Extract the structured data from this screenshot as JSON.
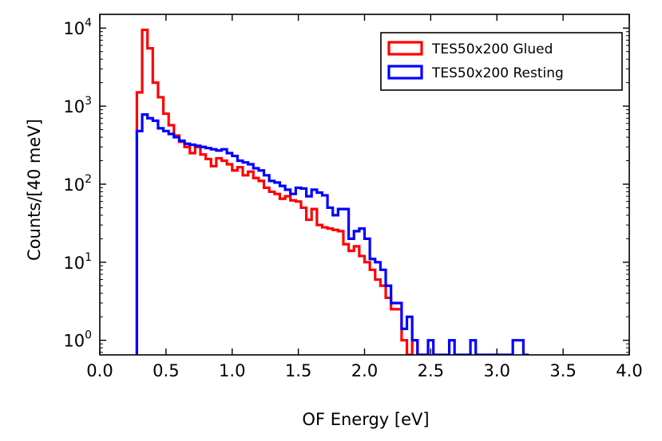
{
  "chart_data": {
    "type": "histogram",
    "xlabel": "OF Energy [eV]",
    "ylabel": "Counts/[40 meV]",
    "xlim": [
      0.0,
      4.0
    ],
    "ylim": [
      0.65,
      15000
    ],
    "yscale": "log",
    "xticks": [
      "0.0",
      "0.5",
      "1.0",
      "1.5",
      "2.0",
      "2.5",
      "3.0",
      "3.5",
      "4.0"
    ],
    "yticks": [
      {
        "base": "10",
        "exp": "0",
        "value": 1
      },
      {
        "base": "10",
        "exp": "1",
        "value": 10
      },
      {
        "base": "10",
        "exp": "2",
        "value": 100
      },
      {
        "base": "10",
        "exp": "3",
        "value": 1000
      },
      {
        "base": "10",
        "exp": "4",
        "value": 10000
      }
    ],
    "grid": false,
    "legend_position": "top-right",
    "bin_width": 0.04,
    "series": [
      {
        "name": "TES50x200 Glued",
        "color": "#ff0000",
        "bins": [
          [
            0.28,
            1500
          ],
          [
            0.32,
            9500
          ],
          [
            0.36,
            5500
          ],
          [
            0.4,
            2000
          ],
          [
            0.44,
            1300
          ],
          [
            0.48,
            800
          ],
          [
            0.52,
            570
          ],
          [
            0.56,
            420
          ],
          [
            0.6,
            350
          ],
          [
            0.64,
            300
          ],
          [
            0.68,
            250
          ],
          [
            0.72,
            300
          ],
          [
            0.76,
            240
          ],
          [
            0.8,
            210
          ],
          [
            0.84,
            170
          ],
          [
            0.88,
            215
          ],
          [
            0.92,
            200
          ],
          [
            0.96,
            180
          ],
          [
            1.0,
            150
          ],
          [
            1.04,
            165
          ],
          [
            1.08,
            130
          ],
          [
            1.12,
            145
          ],
          [
            1.16,
            120
          ],
          [
            1.2,
            110
          ],
          [
            1.24,
            90
          ],
          [
            1.28,
            80
          ],
          [
            1.32,
            75
          ],
          [
            1.36,
            65
          ],
          [
            1.4,
            70
          ],
          [
            1.44,
            62
          ],
          [
            1.48,
            60
          ],
          [
            1.52,
            50
          ],
          [
            1.56,
            35
          ],
          [
            1.6,
            48
          ],
          [
            1.64,
            30
          ],
          [
            1.68,
            28
          ],
          [
            1.72,
            27
          ],
          [
            1.76,
            26
          ],
          [
            1.8,
            25
          ],
          [
            1.84,
            17
          ],
          [
            1.88,
            14
          ],
          [
            1.92,
            16
          ],
          [
            1.96,
            12
          ],
          [
            2.0,
            10
          ],
          [
            2.04,
            8
          ],
          [
            2.08,
            6
          ],
          [
            2.12,
            5
          ],
          [
            2.16,
            3.5
          ],
          [
            2.2,
            2.5
          ],
          [
            2.24,
            2.5
          ],
          [
            2.28,
            1
          ],
          [
            2.32,
            0.5
          ],
          [
            2.36,
            1
          ],
          [
            2.4,
            0.5
          ]
        ]
      },
      {
        "name": "TES50x200 Resting",
        "color": "#0000ff",
        "bins": [
          [
            0.28,
            480
          ],
          [
            0.32,
            780
          ],
          [
            0.36,
            700
          ],
          [
            0.4,
            650
          ],
          [
            0.44,
            520
          ],
          [
            0.48,
            480
          ],
          [
            0.52,
            440
          ],
          [
            0.56,
            400
          ],
          [
            0.6,
            360
          ],
          [
            0.64,
            330
          ],
          [
            0.68,
            320
          ],
          [
            0.72,
            310
          ],
          [
            0.76,
            300
          ],
          [
            0.8,
            290
          ],
          [
            0.84,
            280
          ],
          [
            0.88,
            270
          ],
          [
            0.92,
            280
          ],
          [
            0.96,
            250
          ],
          [
            1.0,
            230
          ],
          [
            1.04,
            200
          ],
          [
            1.08,
            190
          ],
          [
            1.12,
            180
          ],
          [
            1.16,
            160
          ],
          [
            1.2,
            150
          ],
          [
            1.24,
            130
          ],
          [
            1.28,
            110
          ],
          [
            1.32,
            105
          ],
          [
            1.36,
            95
          ],
          [
            1.4,
            85
          ],
          [
            1.44,
            75
          ],
          [
            1.48,
            90
          ],
          [
            1.52,
            88
          ],
          [
            1.56,
            70
          ],
          [
            1.6,
            85
          ],
          [
            1.64,
            78
          ],
          [
            1.68,
            72
          ],
          [
            1.72,
            50
          ],
          [
            1.76,
            40
          ],
          [
            1.8,
            48
          ],
          [
            1.84,
            48
          ],
          [
            1.88,
            20
          ],
          [
            1.92,
            25
          ],
          [
            1.96,
            27
          ],
          [
            2.0,
            20
          ],
          [
            2.04,
            11
          ],
          [
            2.08,
            10
          ],
          [
            2.12,
            8
          ],
          [
            2.16,
            5
          ],
          [
            2.2,
            3
          ],
          [
            2.24,
            3
          ],
          [
            2.28,
            1.4
          ],
          [
            2.32,
            2
          ],
          [
            2.36,
            1
          ],
          [
            2.4,
            0.5
          ],
          [
            2.44,
            0.5
          ],
          [
            2.48,
            1
          ],
          [
            2.52,
            0.5
          ],
          [
            2.56,
            0.5
          ],
          [
            2.6,
            0.5
          ],
          [
            2.64,
            1
          ],
          [
            2.68,
            0.5
          ],
          [
            2.72,
            0.5
          ],
          [
            2.76,
            0.5
          ],
          [
            2.8,
            1
          ],
          [
            2.84,
            0.5
          ],
          [
            2.88,
            0.5
          ],
          [
            2.92,
            0.5
          ],
          [
            2.96,
            0.5
          ],
          [
            3.0,
            0.5
          ],
          [
            3.04,
            0.5
          ],
          [
            3.08,
            0.5
          ],
          [
            3.12,
            1
          ],
          [
            3.16,
            1
          ],
          [
            3.2,
            0.5
          ]
        ]
      }
    ]
  }
}
